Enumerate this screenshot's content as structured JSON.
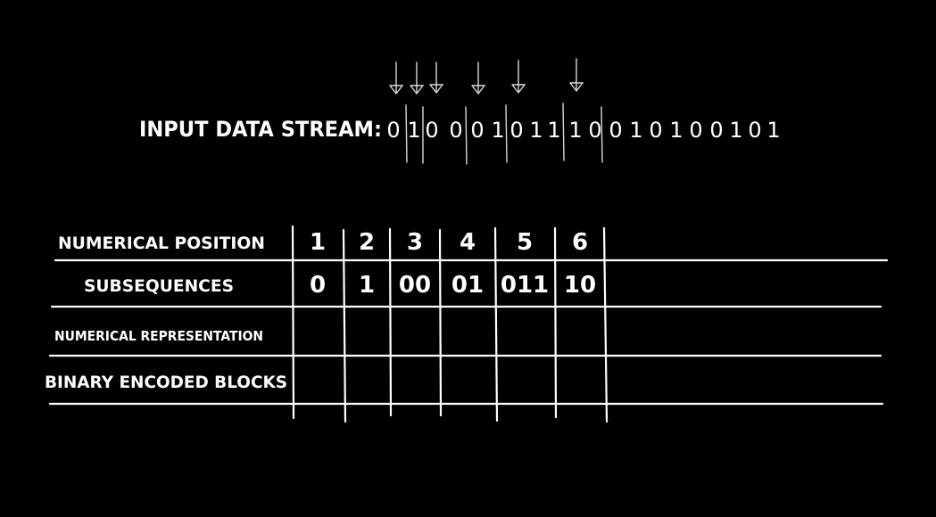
{
  "stream": {
    "label": "INPUT DATA STREAM:",
    "bits": [
      "0",
      "1",
      "0",
      "0",
      "0",
      "1",
      "0",
      "1",
      "1",
      "1",
      "0",
      "0",
      "1",
      "0",
      "1",
      "0",
      "0",
      "1",
      "0",
      "1"
    ]
  },
  "table": {
    "row_labels": {
      "position": "NUMERICAL POSITION",
      "subsequences": "SUBSEQUENCES",
      "numerical_representation": "NUMERICAL REPRESENTATION",
      "binary_blocks": "BINARY ENCODED BLOCKS"
    },
    "positions": [
      "1",
      "2",
      "3",
      "4",
      "5",
      "6"
    ],
    "subsequences": [
      "0",
      "1",
      "00",
      "01",
      "011",
      "10"
    ],
    "numerical_representation": [
      "",
      "",
      "",
      "",
      "",
      ""
    ],
    "binary_blocks": [
      "",
      "",
      "",
      "",
      "",
      ""
    ]
  },
  "colors": {
    "background": "#000000",
    "chalk": "#ffffff"
  }
}
